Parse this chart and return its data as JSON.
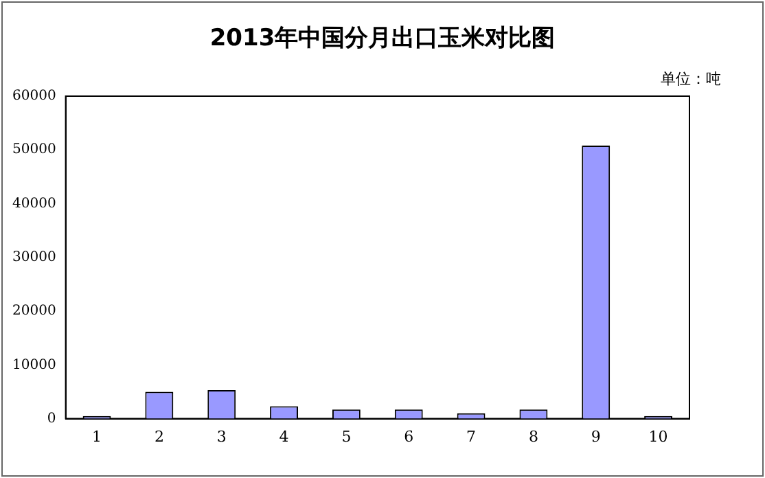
{
  "chart_data": {
    "type": "bar",
    "title": "2013年中国分月出口玉米对比图",
    "annotations": [
      "单位：吨"
    ],
    "categories": [
      "1",
      "2",
      "3",
      "4",
      "5",
      "6",
      "7",
      "8",
      "9",
      "10"
    ],
    "values": [
      500,
      5000,
      5300,
      2300,
      1700,
      1700,
      1000,
      1700,
      50800,
      500
    ],
    "color": "#9999ff",
    "ylim": [
      0,
      60000
    ],
    "yticks": [
      0,
      10000,
      20000,
      30000,
      40000,
      50000,
      60000
    ],
    "grid": false,
    "legend": false
  }
}
